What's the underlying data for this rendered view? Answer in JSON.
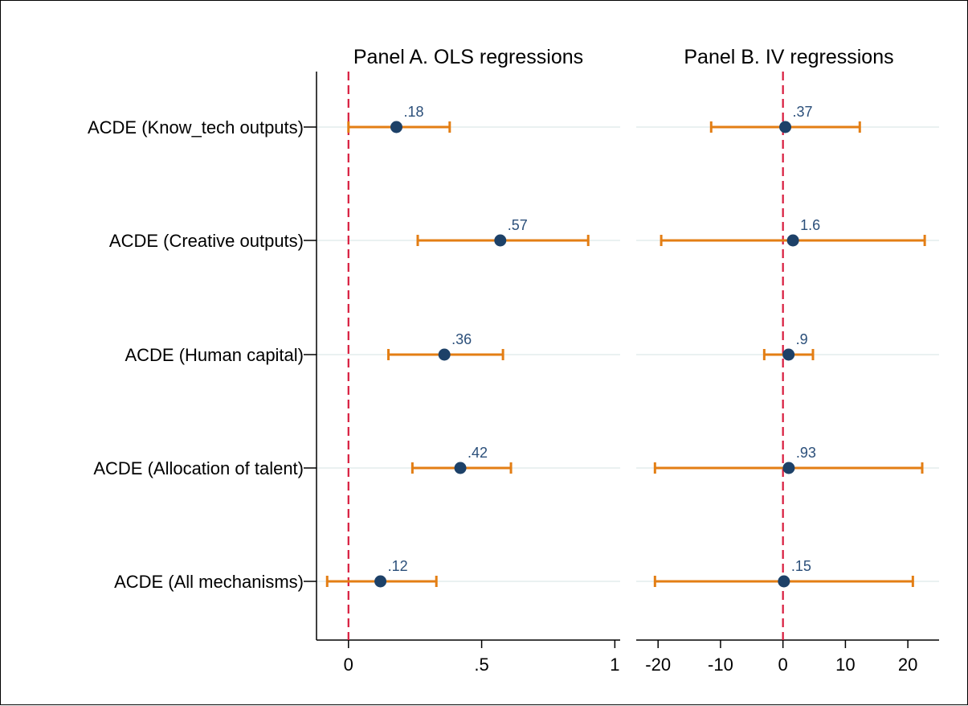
{
  "chart_data": [
    {
      "type": "scatter",
      "title": "Panel A. OLS regressions",
      "categories": [
        "ACDE (Know_tech outputs)",
        "ACDE (Creative outputs)",
        "ACDE (Human capital)",
        "ACDE (Allocation of talent)",
        "ACDE (All mechanisms)"
      ],
      "estimates": [
        0.18,
        0.57,
        0.36,
        0.42,
        0.12
      ],
      "ci_low": [
        0.0,
        0.26,
        0.15,
        0.24,
        -0.08
      ],
      "ci_high": [
        0.38,
        0.9,
        0.58,
        0.61,
        0.33
      ],
      "point_labels": [
        ".18",
        ".57",
        ".36",
        ".42",
        ".12"
      ],
      "xlim": [
        -0.12,
        1.02
      ],
      "xticks": [
        0,
        0.5,
        1
      ],
      "xtick_labels": [
        "0",
        ".5",
        "1"
      ],
      "reference_line": 0,
      "grid": true
    },
    {
      "type": "scatter",
      "title": "Panel B. IV regressions",
      "categories": [
        "ACDE (Know_tech outputs)",
        "ACDE (Creative outputs)",
        "ACDE (Human capital)",
        "ACDE (Allocation of talent)",
        "ACDE (All mechanisms)"
      ],
      "estimates": [
        0.37,
        1.6,
        0.9,
        0.93,
        0.15
      ],
      "ci_low": [
        -11.5,
        -19.5,
        -3.0,
        -20.5,
        -20.5
      ],
      "ci_high": [
        12.3,
        22.7,
        4.8,
        22.3,
        20.8
      ],
      "point_labels": [
        ".37",
        "1.6",
        ".9",
        ".93",
        ".15"
      ],
      "xlim": [
        -23.5,
        25
      ],
      "xticks": [
        -20,
        -10,
        0,
        10,
        20
      ],
      "xtick_labels": [
        "-20",
        "-10",
        "0",
        "10",
        "20"
      ],
      "reference_line": 0,
      "grid": true
    }
  ],
  "colors": {
    "ci": "#e37e14",
    "point": "#1d4168",
    "label": "#2b4f7a",
    "refline": "#d81b3d",
    "grid": "#eaf1f1"
  }
}
